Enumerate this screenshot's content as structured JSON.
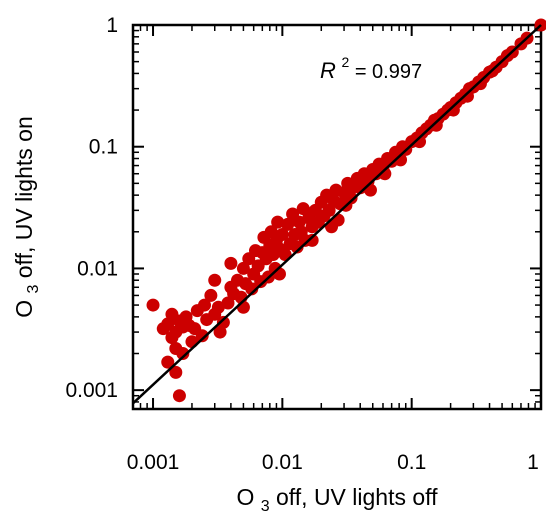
{
  "chart_data": {
    "type": "scatter",
    "title": "",
    "xlabel": {
      "pre": "O",
      "sub": "3",
      "post": " off, UV lights off"
    },
    "ylabel": {
      "pre": "O",
      "sub": "3",
      "post": " off, UV lights on"
    },
    "xscale": "log",
    "yscale": "log",
    "xlim": [
      0.0007,
      1
    ],
    "ylim": [
      0.0007,
      1
    ],
    "x_ticks": [
      0.001,
      0.01,
      0.1,
      1
    ],
    "x_tick_labels": [
      "0.001",
      "0.01",
      "0.1",
      "1"
    ],
    "y_ticks": [
      0.001,
      0.01,
      0.1,
      1
    ],
    "y_tick_labels": [
      "0.001",
      "0.01",
      "0.1",
      "1"
    ],
    "grid": false,
    "legend": "none",
    "marker_color": "#cc0000",
    "line_color": "#000000",
    "annotation": {
      "var": "R",
      "sup": "2",
      "rest": " = 0.997"
    },
    "fit_line": {
      "x": [
        0.0007,
        1
      ],
      "y": [
        0.00078,
        1
      ]
    },
    "series": [
      {
        "points": [
          [
            0.001,
            0.005
          ],
          [
            0.0014,
            0.0042
          ],
          [
            0.0012,
            0.0032
          ],
          [
            0.0013,
            0.0035
          ],
          [
            0.0015,
            0.003
          ],
          [
            0.0016,
            0.0037
          ],
          [
            0.0014,
            0.0027
          ],
          [
            0.0017,
            0.0033
          ],
          [
            0.0018,
            0.004
          ],
          [
            0.0015,
            0.0022
          ],
          [
            0.0013,
            0.0017
          ],
          [
            0.0017,
            0.002
          ],
          [
            0.0016,
            0.0009
          ],
          [
            0.0015,
            0.0014
          ],
          [
            0.002,
            0.0025
          ],
          [
            0.0019,
            0.0034
          ],
          [
            0.0022,
            0.0045
          ],
          [
            0.0021,
            0.0032
          ],
          [
            0.0025,
            0.005
          ],
          [
            0.0024,
            0.0028
          ],
          [
            0.0026,
            0.0038
          ],
          [
            0.0028,
            0.006
          ],
          [
            0.003,
            0.0042
          ],
          [
            0.003,
            0.008
          ],
          [
            0.0032,
            0.0048
          ],
          [
            0.0035,
            0.0036
          ],
          [
            0.0033,
            0.003
          ],
          [
            0.0038,
            0.0052
          ],
          [
            0.004,
            0.007
          ],
          [
            0.0042,
            0.0062
          ],
          [
            0.004,
            0.011
          ],
          [
            0.0045,
            0.008
          ],
          [
            0.0048,
            0.0058
          ],
          [
            0.005,
            0.01
          ],
          [
            0.0052,
            0.0075
          ],
          [
            0.005,
            0.0048
          ],
          [
            0.0055,
            0.012
          ],
          [
            0.006,
            0.009
          ],
          [
            0.0058,
            0.0068
          ],
          [
            0.0062,
            0.014
          ],
          [
            0.0065,
            0.0105
          ],
          [
            0.0068,
            0.0078
          ],
          [
            0.007,
            0.0135
          ],
          [
            0.0072,
            0.018
          ],
          [
            0.0075,
            0.012
          ],
          [
            0.0078,
            0.0085
          ],
          [
            0.008,
            0.0155
          ],
          [
            0.0082,
            0.02
          ],
          [
            0.0085,
            0.013
          ],
          [
            0.0088,
            0.01
          ],
          [
            0.009,
            0.017
          ],
          [
            0.0092,
            0.024
          ],
          [
            0.0095,
            0.0145
          ],
          [
            0.01,
            0.019
          ],
          [
            0.0105,
            0.013
          ],
          [
            0.011,
            0.023
          ],
          [
            0.0115,
            0.016
          ],
          [
            0.012,
            0.028
          ],
          [
            0.0125,
            0.019
          ],
          [
            0.013,
            0.015
          ],
          [
            0.0135,
            0.024
          ],
          [
            0.014,
            0.02
          ],
          [
            0.0145,
            0.031
          ],
          [
            0.015,
            0.017
          ],
          [
            0.016,
            0.026
          ],
          [
            0.017,
            0.022
          ],
          [
            0.018,
            0.03
          ],
          [
            0.019,
            0.024
          ],
          [
            0.02,
            0.035
          ],
          [
            0.021,
            0.027
          ],
          [
            0.022,
            0.04
          ],
          [
            0.023,
            0.03
          ],
          [
            0.025,
            0.036
          ],
          [
            0.026,
            0.044
          ],
          [
            0.028,
            0.034
          ],
          [
            0.03,
            0.042
          ],
          [
            0.032,
            0.05
          ],
          [
            0.034,
            0.038
          ],
          [
            0.036,
            0.047
          ],
          [
            0.038,
            0.055
          ],
          [
            0.04,
            0.046
          ],
          [
            0.043,
            0.06
          ],
          [
            0.046,
            0.052
          ],
          [
            0.05,
            0.065
          ],
          [
            0.053,
            0.06
          ],
          [
            0.056,
            0.072
          ],
          [
            0.06,
            0.068
          ],
          [
            0.065,
            0.08
          ],
          [
            0.07,
            0.076
          ],
          [
            0.075,
            0.09
          ],
          [
            0.08,
            0.088
          ],
          [
            0.085,
            0.1
          ],
          [
            0.09,
            0.095
          ],
          [
            0.1,
            0.11
          ],
          [
            0.11,
            0.118
          ],
          [
            0.12,
            0.13
          ],
          [
            0.13,
            0.14
          ],
          [
            0.14,
            0.15
          ],
          [
            0.15,
            0.165
          ],
          [
            0.16,
            0.17
          ],
          [
            0.175,
            0.185
          ],
          [
            0.19,
            0.2
          ],
          [
            0.2,
            0.21
          ],
          [
            0.22,
            0.23
          ],
          [
            0.24,
            0.25
          ],
          [
            0.26,
            0.27
          ],
          [
            0.28,
            0.3
          ],
          [
            0.3,
            0.31
          ],
          [
            0.33,
            0.34
          ],
          [
            0.36,
            0.37
          ],
          [
            0.4,
            0.41
          ],
          [
            0.45,
            0.45
          ],
          [
            0.5,
            0.5
          ],
          [
            0.55,
            0.56
          ],
          [
            0.6,
            0.6
          ],
          [
            0.7,
            0.7
          ],
          [
            0.78,
            0.78
          ],
          [
            1.0,
            1.0
          ],
          [
            0.027,
            0.025
          ],
          [
            0.031,
            0.033
          ],
          [
            0.048,
            0.044
          ],
          [
            0.062,
            0.06
          ],
          [
            0.082,
            0.078
          ],
          [
            0.115,
            0.11
          ],
          [
            0.155,
            0.15
          ],
          [
            0.21,
            0.2
          ],
          [
            0.27,
            0.26
          ],
          [
            0.34,
            0.33
          ],
          [
            0.42,
            0.42
          ],
          [
            0.024,
            0.022
          ],
          [
            0.017,
            0.017
          ],
          [
            0.0095,
            0.009
          ]
        ]
      }
    ]
  }
}
